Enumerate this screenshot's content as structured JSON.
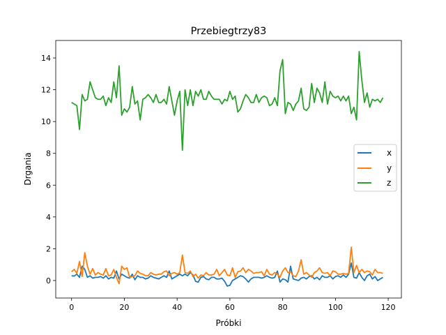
{
  "chart_data": {
    "type": "line",
    "title": "Przebiegtrzy83",
    "xlabel": "Próbki",
    "ylabel": "Drgania",
    "xlim": [
      -6,
      125
    ],
    "ylim": [
      -1.1,
      15.1
    ],
    "xticks": [
      0,
      20,
      40,
      60,
      80,
      100,
      120
    ],
    "yticks": [
      0,
      2,
      4,
      6,
      8,
      10,
      12,
      14
    ],
    "legend_position": "center-right",
    "series": [
      {
        "name": "x",
        "color": "#1f77b4",
        "values": [
          0.3,
          0.28,
          0.4,
          0.2,
          0.9,
          0.7,
          0.2,
          0.3,
          0.15,
          0.2,
          0.2,
          0.25,
          0.15,
          0.3,
          0.1,
          0.2,
          0.15,
          0.6,
          0.1,
          0.4,
          0.3,
          0.2,
          0.15,
          0.4,
          0.05,
          0.3,
          0.2,
          0.2,
          0.1,
          0.15,
          0.3,
          0.2,
          0.15,
          0.1,
          0.2,
          0.3,
          0.2,
          0.6,
          0.1,
          0.2,
          0.3,
          0.4,
          0.3,
          0.4,
          0.3,
          0.5,
          0.35,
          -0.05,
          -0.1,
          0.2,
          0.25,
          0.1,
          0.05,
          0.2,
          0.2,
          0.1,
          0.1,
          0.15,
          -0.05,
          -0.35,
          -0.3,
          0.0,
          0.1,
          0.2,
          0.3,
          0.25,
          0.1,
          -0.1,
          0.1,
          0.2,
          0.2,
          0.2,
          0.15,
          0.2,
          0.3,
          0.2,
          0.15,
          0.2,
          0.6,
          -0.1,
          0.1,
          0.05,
          -0.1,
          0.9,
          0.1,
          0.05,
          0.0,
          0.15,
          0.2,
          0.1,
          0.25,
          0.3,
          0.1,
          0.2,
          0.05,
          0.3,
          0.2,
          0.2,
          0.3,
          0.1,
          0.25,
          0.3,
          0.2,
          0.35,
          0.2,
          0.4,
          1.1,
          0.2,
          0.15,
          0.5,
          0.2,
          0.0,
          0.3,
          0.4,
          0.1,
          0.25,
          0.0,
          0.1,
          0.2
        ]
      },
      {
        "name": "y",
        "color": "#ff7f0e",
        "values": [
          0.55,
          0.7,
          0.45,
          1.2,
          0.25,
          1.75,
          0.9,
          0.4,
          0.75,
          0.35,
          0.5,
          0.4,
          0.35,
          0.75,
          0.3,
          0.35,
          0.7,
          0.2,
          -0.2,
          0.9,
          0.7,
          0.8,
          0.2,
          0.25,
          0.3,
          0.6,
          0.45,
          0.4,
          0.3,
          0.3,
          0.5,
          0.4,
          0.35,
          0.4,
          0.4,
          0.55,
          0.6,
          0.3,
          0.45,
          0.5,
          0.4,
          0.5,
          1.6,
          0.5,
          0.45,
          0.6,
          0.25,
          0.4,
          0.15,
          0.35,
          0.3,
          0.5,
          0.35,
          0.35,
          0.4,
          0.7,
          0.3,
          0.5,
          0.7,
          0.35,
          0.3,
          0.8,
          0.2,
          0.55,
          0.6,
          0.8,
          0.5,
          0.7,
          0.6,
          0.45,
          0.5,
          0.5,
          0.55,
          0.3,
          0.7,
          0.4,
          0.35,
          0.5,
          0.4,
          0.2,
          0.6,
          0.8,
          0.5,
          0.55,
          0.3,
          0.25,
          0.6,
          1.3,
          0.4,
          0.5,
          0.35,
          0.2,
          0.5,
          0.6,
          0.8,
          0.5,
          0.45,
          0.5,
          0.3,
          0.6,
          0.55,
          0.4,
          0.4,
          0.45,
          0.4,
          0.45,
          2.1,
          0.5,
          0.95,
          0.5,
          0.7,
          0.5,
          0.6,
          0.55,
          0.35,
          0.7,
          0.5,
          0.5,
          0.45
        ]
      },
      {
        "name": "z",
        "color": "#2ca02c",
        "values": [
          11.2,
          11.1,
          11.0,
          9.5,
          11.7,
          11.3,
          11.4,
          12.5,
          12.0,
          11.5,
          11.4,
          11.4,
          11.6,
          11.0,
          11.5,
          11.2,
          12.5,
          11.5,
          13.5,
          10.4,
          10.8,
          10.6,
          10.9,
          12.2,
          11.1,
          11.3,
          10.1,
          11.4,
          11.5,
          11.7,
          11.5,
          11.2,
          11.7,
          11.2,
          11.2,
          11.4,
          11.1,
          12.2,
          11.3,
          10.4,
          11.3,
          11.9,
          8.2,
          12.0,
          11.0,
          12.0,
          11.0,
          11.9,
          11.6,
          12.0,
          11.4,
          11.4,
          11.9,
          11.6,
          11.4,
          11.4,
          11.4,
          11.1,
          11.4,
          11.3,
          11.9,
          11.4,
          11.6,
          10.6,
          10.8,
          11.3,
          11.7,
          11.5,
          11.2,
          11.2,
          11.7,
          11.2,
          11.5,
          11.6,
          11.5,
          11.0,
          11.1,
          11.5,
          11.0,
          13.2,
          13.9,
          10.5,
          11.2,
          11.1,
          10.7,
          11.1,
          11.3,
          12.1,
          10.8,
          10.7,
          10.9,
          12.4,
          11.2,
          12.1,
          11.8,
          11.2,
          12.5,
          11.1,
          11.9,
          11.6,
          11.5,
          11.6,
          11.3,
          11.6,
          11.3,
          11.6,
          10.5,
          10.9,
          10.1,
          14.4,
          12.6,
          11.2,
          11.8,
          10.9,
          11.4,
          11.3,
          11.4,
          11.2,
          11.5
        ]
      }
    ]
  }
}
